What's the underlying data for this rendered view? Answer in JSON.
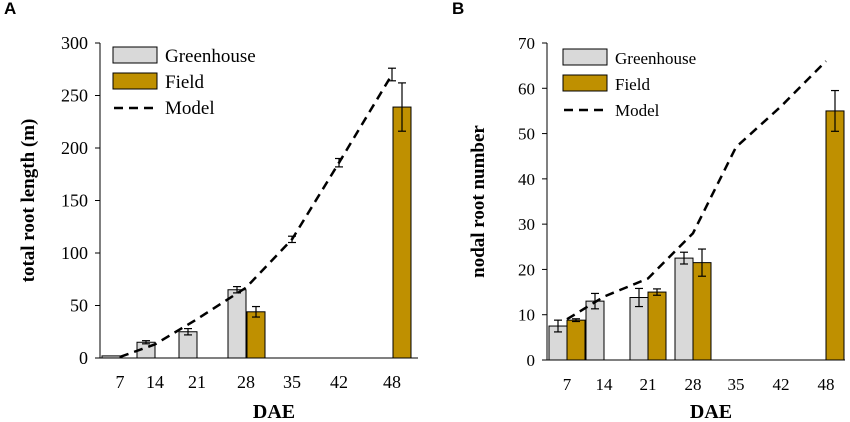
{
  "panels": [
    {
      "letter": "A"
    },
    {
      "letter": "B"
    }
  ],
  "colors": {
    "greenhouse": "#d9d9d9",
    "field": "#bf9000",
    "model": "#000000",
    "bar_stroke": "#000000"
  },
  "chart_data": [
    {
      "type": "bar",
      "categories": [
        "7",
        "14",
        "21",
        "28",
        "35",
        "42",
        "48"
      ],
      "xlabel": "DAE",
      "ylabel": "total root length (m)",
      "ylim": [
        0,
        300
      ],
      "yticks": [
        0,
        50,
        100,
        150,
        200,
        250,
        300
      ],
      "legend_position": "top-left",
      "series": [
        {
          "name": "Greenhouse",
          "kind": "bar",
          "values": [
            2,
            15,
            25,
            65,
            null,
            null,
            null
          ],
          "errors": [
            0,
            1.5,
            3,
            3,
            null,
            null,
            null
          ]
        },
        {
          "name": "Field",
          "kind": "bar",
          "values": [
            null,
            null,
            null,
            44,
            null,
            null,
            239
          ],
          "errors": [
            null,
            null,
            null,
            5,
            null,
            null,
            23
          ]
        },
        {
          "name": "Model",
          "kind": "line",
          "dashed": true,
          "values": [
            1,
            13,
            37,
            67,
            113,
            186,
            270
          ],
          "errors": [
            0,
            0,
            0,
            0,
            3,
            4,
            6
          ]
        }
      ]
    },
    {
      "type": "bar",
      "categories": [
        "7",
        "14",
        "21",
        "28",
        "35",
        "42",
        "48"
      ],
      "xlabel": "DAE",
      "ylabel": "nodal root number",
      "ylim": [
        0,
        70
      ],
      "yticks": [
        0,
        10,
        20,
        30,
        40,
        50,
        60,
        70
      ],
      "legend_position": "top-left",
      "series": [
        {
          "name": "Greenhouse",
          "kind": "bar",
          "values": [
            7.5,
            13,
            13.8,
            22.5,
            null,
            null,
            null
          ],
          "errors": [
            1.3,
            1.7,
            2,
            1.3,
            null,
            null,
            null
          ]
        },
        {
          "name": "Field",
          "kind": "bar",
          "values": [
            8.8,
            null,
            15,
            21.5,
            null,
            null,
            55
          ],
          "errors": [
            0.3,
            null,
            0.7,
            3,
            null,
            null,
            4.5
          ]
        },
        {
          "name": "Model",
          "kind": "line",
          "dashed": true,
          "values": [
            9,
            14,
            18,
            28,
            47,
            56,
            66
          ]
        }
      ]
    }
  ]
}
